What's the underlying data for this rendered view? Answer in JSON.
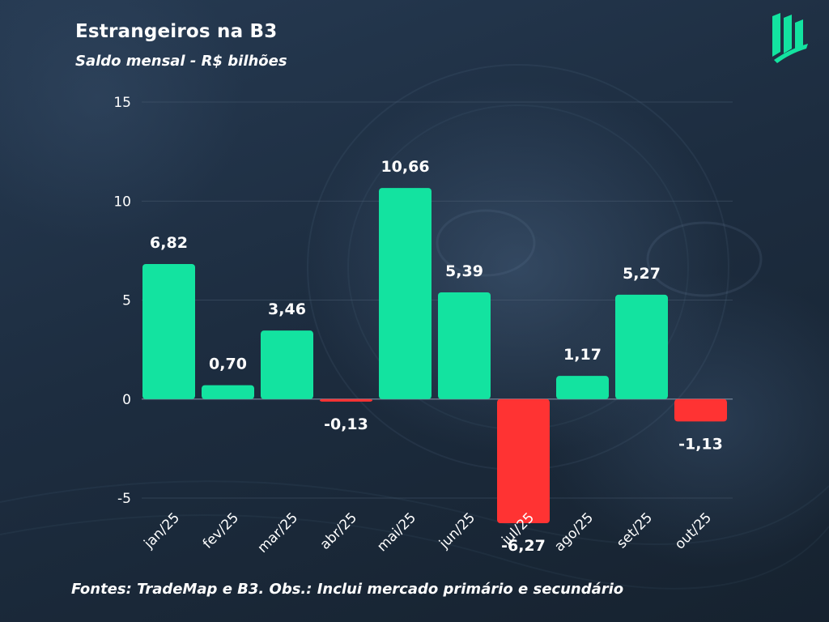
{
  "header": {
    "title": "Estrangeiros na B3",
    "subtitle": "Saldo mensal - R$ bilhões"
  },
  "footer": {
    "note": "Fontes: TradeMap e B3. Obs.: Inclui mercado primário e secundário"
  },
  "logo": {
    "icon": "brand-logo-icon"
  },
  "colors": {
    "positive": "#13e3a0",
    "negative": "#ff3333",
    "text": "#ffffff",
    "grid": "#5a6b80"
  },
  "chart_data": {
    "type": "bar",
    "title": "Estrangeiros na B3",
    "subtitle": "Saldo mensal - R$ bilhões",
    "xlabel": "",
    "ylabel": "",
    "categories": [
      "jan/25",
      "fev/25",
      "mar/25",
      "abr/25",
      "mai/25",
      "jun/25",
      "jul/25",
      "ago/25",
      "set/25",
      "out/25"
    ],
    "values": [
      6.82,
      0.7,
      3.46,
      -0.13,
      10.66,
      5.39,
      -6.27,
      1.17,
      5.27,
      -1.13
    ],
    "value_labels": [
      "6,82",
      "0,70",
      "3,46",
      "-0,13",
      "10,66",
      "5,39",
      "-6,27",
      "1,17",
      "5,27",
      "-1,13"
    ],
    "ylim": [
      -5,
      15
    ],
    "yticks": [
      -5,
      0,
      5,
      10,
      15
    ],
    "ytick_labels": [
      "-5",
      "0",
      "5",
      "10",
      "15"
    ],
    "grid": true
  }
}
